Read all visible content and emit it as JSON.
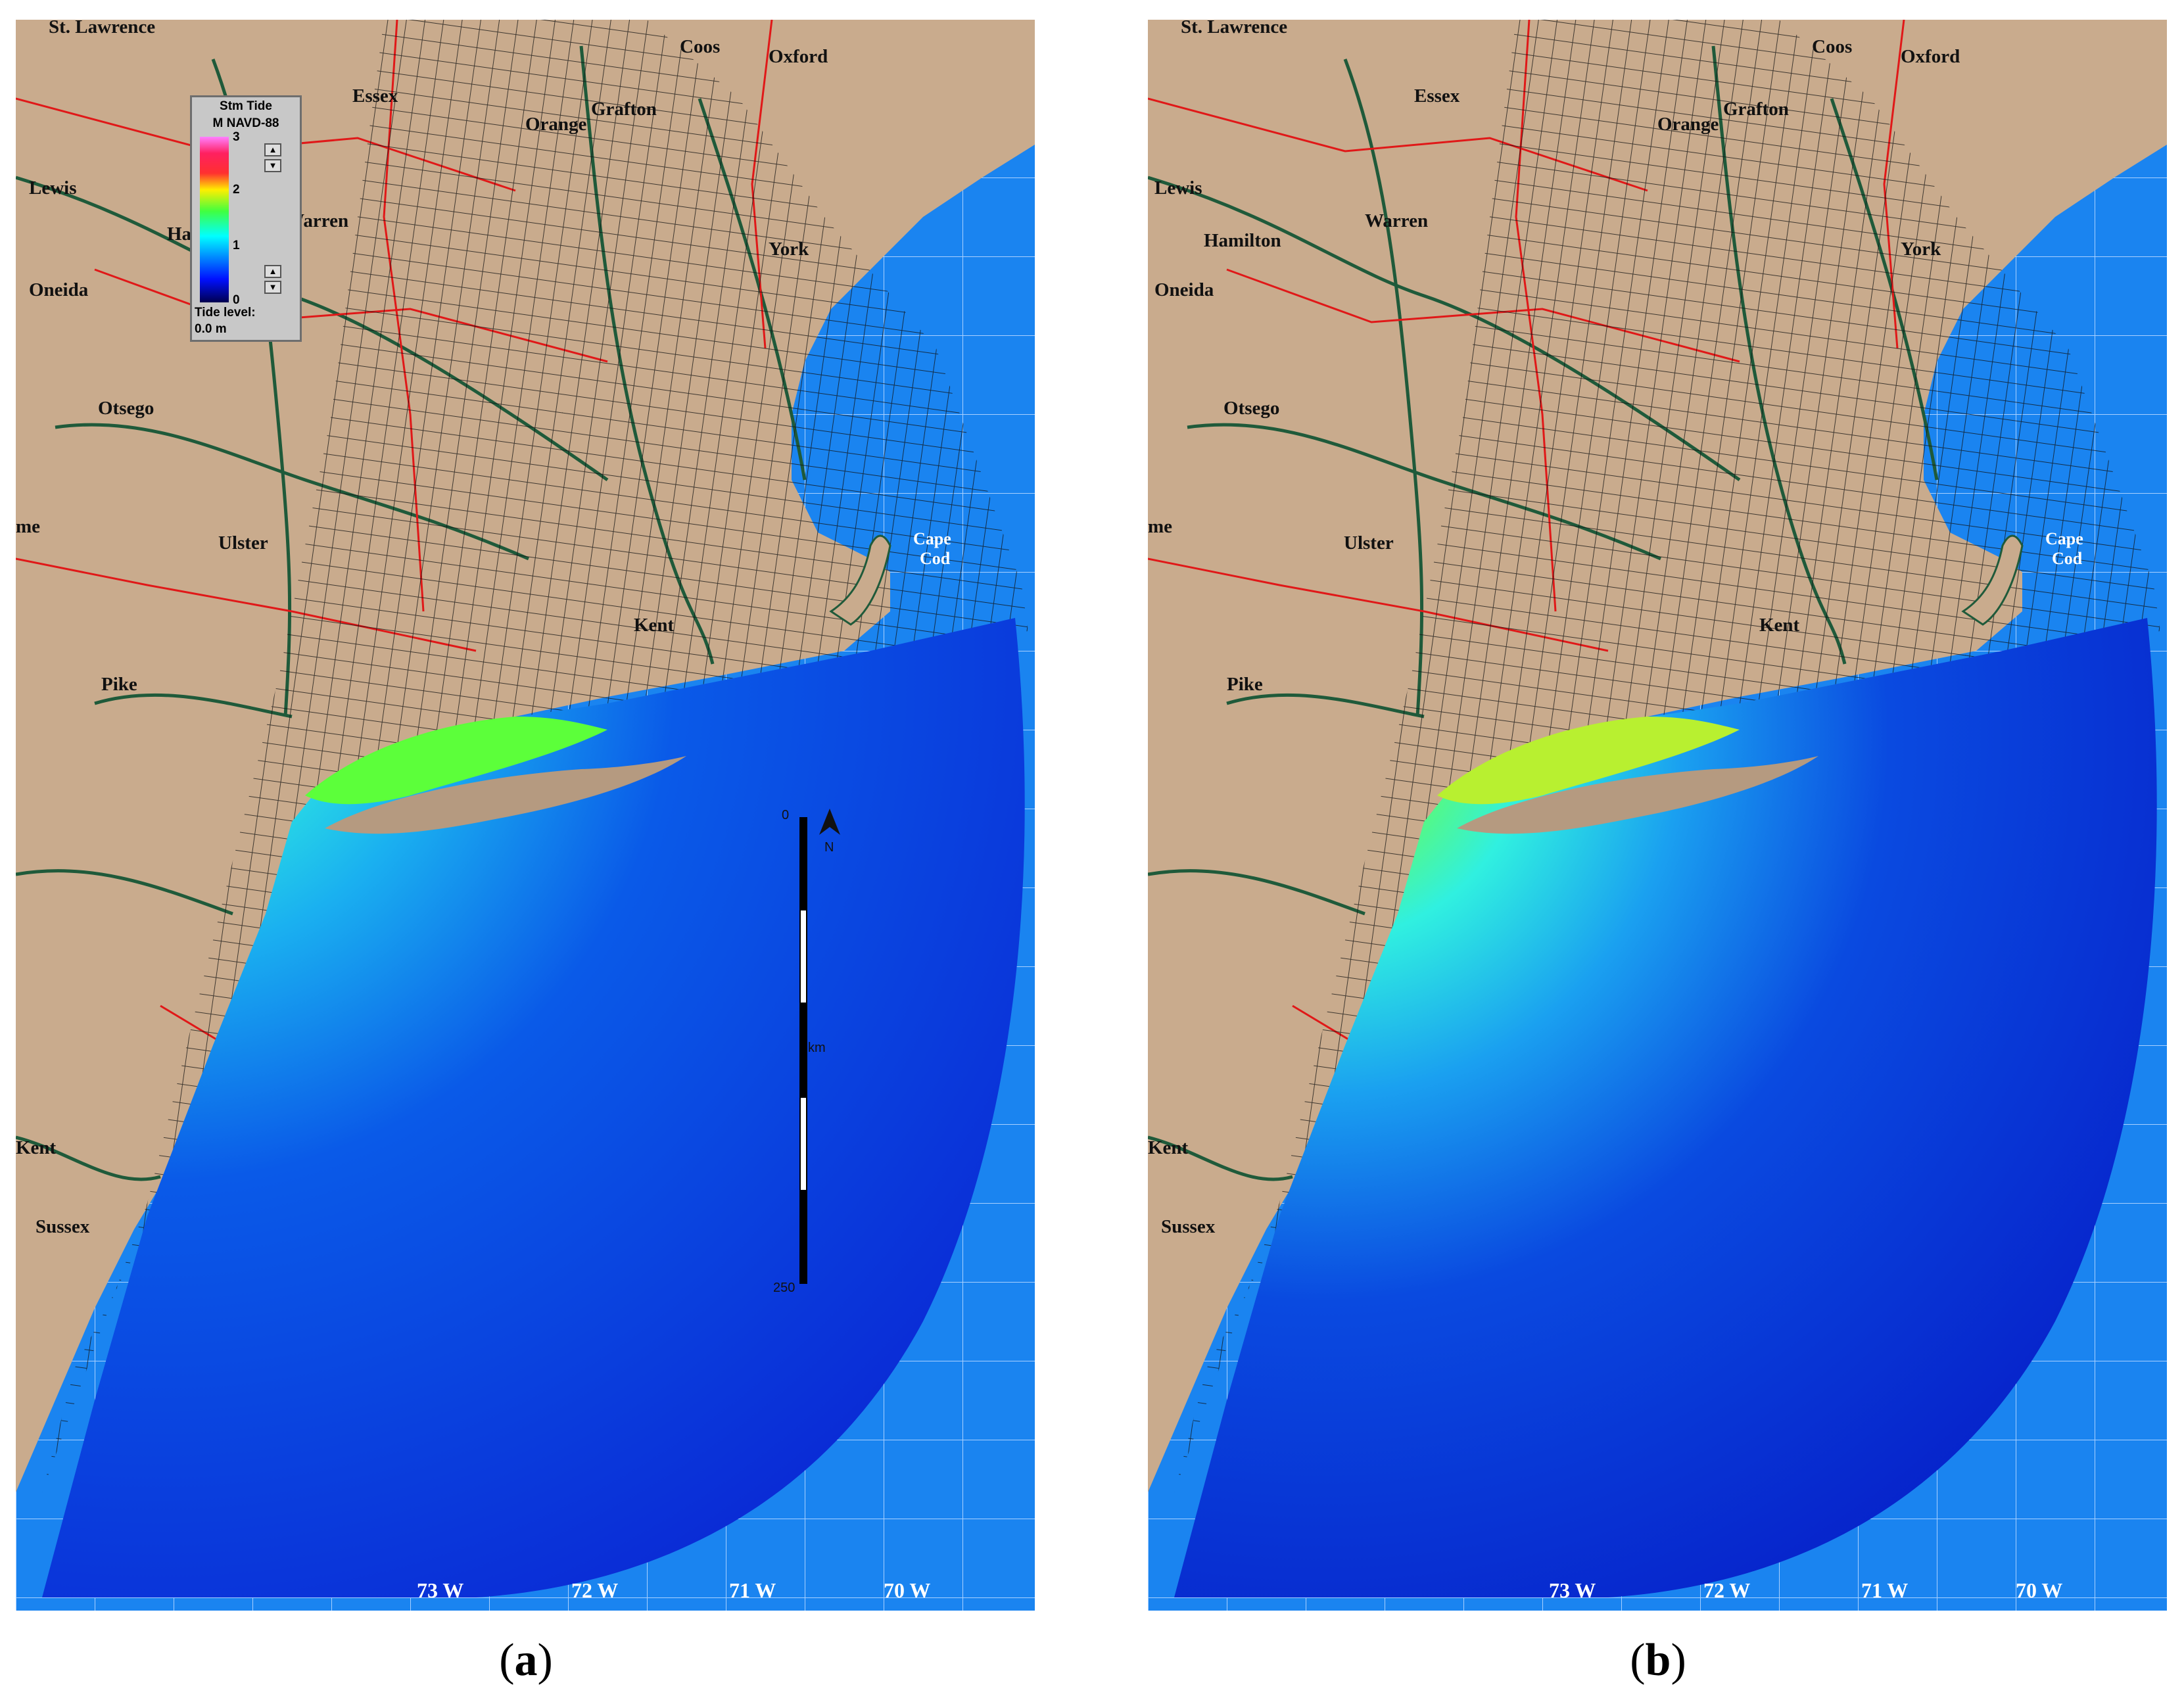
{
  "panels": [
    {
      "id": "a",
      "caption_letter": "a",
      "legend": {
        "title_line1": "Stm Tide",
        "title_line2": "M NAVD-88",
        "ticks": [
          "3",
          "2",
          "1",
          "0"
        ],
        "tide_label": "Tide level:",
        "tide_value": "0.0 m"
      },
      "scale_bar": {
        "start": "0",
        "end": "250",
        "unit": "km",
        "north": "N"
      },
      "places": [
        "St. Lawrence",
        "Essex",
        "Coos",
        "Oxford",
        "Grafton",
        "Orange",
        "Lewis",
        "Ha",
        "Warren",
        "York",
        "Oneida",
        "Otsego",
        "Ulster",
        "Kent",
        "Pike",
        "me",
        "Kent",
        "Sussex"
      ],
      "coastal_label": [
        "Cape",
        "Cod"
      ],
      "longitudes": [
        "73 W",
        "72 W",
        "71 W",
        "70 W"
      ]
    },
    {
      "id": "b",
      "caption_letter": "b",
      "places": [
        "St. Lawrence",
        "Essex",
        "Coos",
        "Oxford",
        "Grafton",
        "Orange",
        "Lewis",
        "Hamilton",
        "Warren",
        "York",
        "Oneida",
        "Otsego",
        "Ulster",
        "Kent",
        "Pike",
        "me",
        "Kent",
        "Sussex"
      ],
      "coastal_label": [
        "Cape",
        "Cod"
      ],
      "longitudes": [
        "73 W",
        "72 W",
        "71 W",
        "70 W"
      ]
    }
  ],
  "colors": {
    "land": "#c9ab8d",
    "ocean": "#1a84f0",
    "shallow": "#7cf05a",
    "cyan": "#30ecf0",
    "deep": "#0a2cd6",
    "roads": "#1f5a3a",
    "boundaries": "#e01818"
  }
}
